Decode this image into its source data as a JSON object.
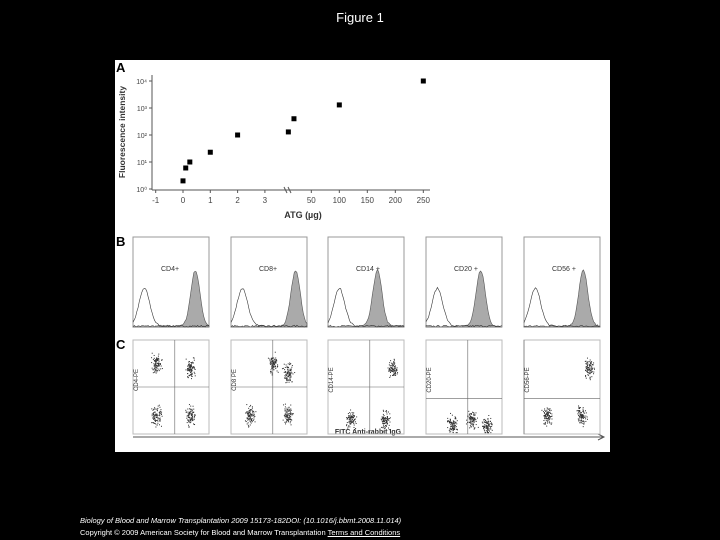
{
  "title": "Figure 1",
  "chart_data": {
    "type": "scatter",
    "panel": "A",
    "x_label": "ATG (µg)",
    "y_label": "Fluorescence intensity",
    "x": [
      0,
      0.1,
      0.25,
      1,
      2,
      9,
      19,
      100,
      250
    ],
    "values": [
      2,
      6,
      10,
      23,
      100,
      130,
      400,
      1300,
      10000
    ],
    "color": "#000000",
    "ylog": true,
    "ylim": [
      1,
      10000
    ],
    "yticks": [
      {
        "value": 1,
        "label": "10⁰"
      },
      {
        "value": 10,
        "label": "10¹"
      },
      {
        "value": 100,
        "label": "10²"
      },
      {
        "value": 1000,
        "label": "10³"
      },
      {
        "value": 10000,
        "label": "10⁴"
      }
    ],
    "xlim": [
      -1,
      250
    ],
    "xticks": [
      {
        "value": -1,
        "label": "-1"
      },
      0,
      1,
      2,
      3,
      50,
      100,
      150,
      200,
      250
    ]
  },
  "panel_b": {
    "label": "B",
    "markers": [
      "CD4+",
      "CD8+",
      "CD14 +",
      "CD20 +",
      "CD56 +"
    ]
  },
  "panel_c": {
    "label": "C",
    "y_labels": [
      "CD4-PE",
      "CD8 PE",
      "CD14-PE",
      "CD20-PE",
      "CD56-PE"
    ],
    "x_label": "FITC Anti-rabbit IgG"
  },
  "citation": "Biology of Blood and Marrow Transplantation 2009 15173-182DOI: (10.1016/j.bbmt.2008.11.014)",
  "copyright": "Copyright © 2009 American Society for Blood and Marrow Transplantation",
  "terms_link": "Terms and Conditions"
}
